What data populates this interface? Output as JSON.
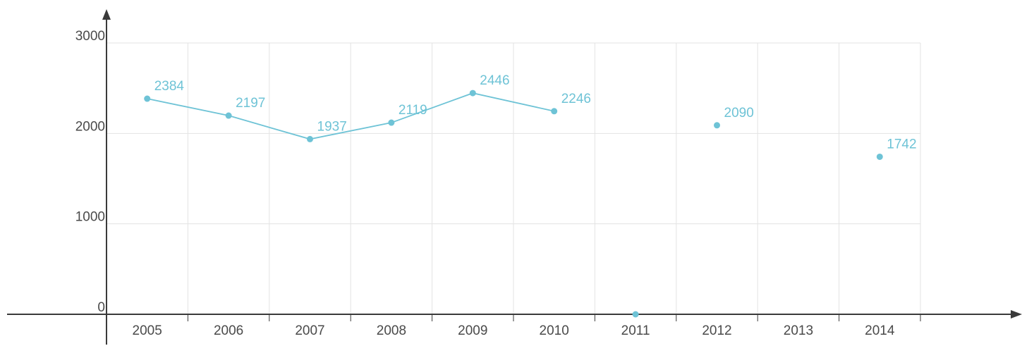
{
  "chart_data": {
    "type": "line",
    "categories": [
      "2005",
      "2006",
      "2007",
      "2008",
      "2009",
      "2010",
      "2011",
      "2012",
      "2013",
      "2014"
    ],
    "series": [
      {
        "values": [
          2384,
          2197,
          1937,
          2119,
          2446,
          2246,
          0,
          2090,
          null,
          1742
        ],
        "labels": [
          "2384",
          "2197",
          "1937",
          "2119",
          "2446",
          "2246",
          "",
          "2090",
          "",
          "1742"
        ],
        "color": "#6ec3d6"
      }
    ],
    "yticks": [
      "0",
      "1000",
      "2000",
      "3000"
    ],
    "ylim": [
      0,
      3000
    ],
    "grid": true,
    "xlabel": "",
    "ylabel": "",
    "title": ""
  }
}
